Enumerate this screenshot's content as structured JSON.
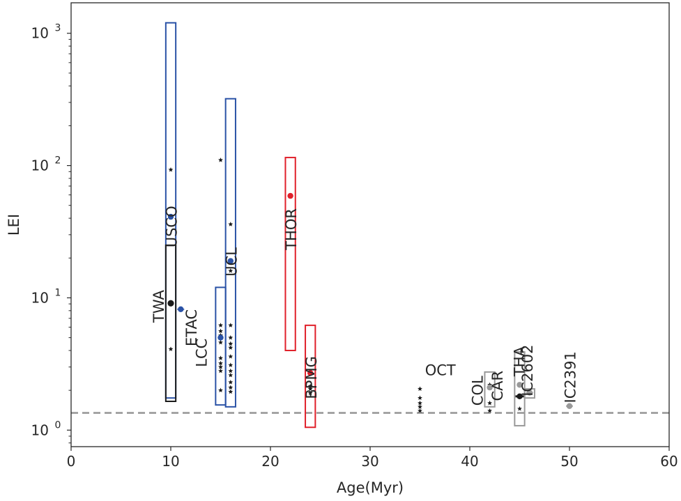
{
  "chart_data": {
    "type": "scatter",
    "title": "",
    "xlabel": "Age(Myr)",
    "ylabel": "LEI",
    "xlim": [
      0,
      60
    ],
    "ylim": [
      0.75,
      1700
    ],
    "yscale": "log",
    "grid": false,
    "x_ticks": [
      0,
      10,
      20,
      30,
      40,
      50,
      60
    ],
    "x_tick_labels": [
      "0",
      "10",
      "20",
      "30",
      "40",
      "50",
      "60"
    ],
    "y_ticks": [
      1,
      10,
      100,
      1000
    ],
    "y_tick_labels": [
      {
        "base": "10",
        "exp": "0"
      },
      {
        "base": "10",
        "exp": "1"
      },
      {
        "base": "10",
        "exp": "2"
      },
      {
        "base": "10",
        "exp": "3"
      }
    ],
    "reference_line": {
      "y": 1.35,
      "style": "dashed",
      "color": "#999999"
    },
    "colors": {
      "blue": "#2a52a6",
      "red": "#e0202a",
      "gray": "#999999",
      "black": "#1a1a1a"
    },
    "groups": [
      {
        "label": "USCO",
        "age": 10,
        "box_x": [
          9.5,
          10.5
        ],
        "box_y": [
          1.75,
          1200
        ],
        "color": "#2a52a6",
        "mean": 41,
        "members": [
          93,
          41,
          4.1
        ],
        "label_x": 10.6,
        "label_y": 24,
        "label_rotate": -90,
        "label_anchor": "start"
      },
      {
        "label": "TWA",
        "age": 10,
        "box_x": [
          9.5,
          10.5
        ],
        "box_y": [
          1.65,
          25
        ],
        "color": "#1a1a1a",
        "mean": 9.1,
        "members": [],
        "label_x": 9.3,
        "label_y": 6.5,
        "label_rotate": -90,
        "label_anchor": "start"
      },
      {
        "label": "ETAC",
        "age": 11,
        "box_x": null,
        "box_y": null,
        "color": "#2a52a6",
        "mean": 8.2,
        "members": [],
        "label_x": 12.6,
        "label_y": 4.3,
        "label_rotate": -90,
        "label_anchor": "start"
      },
      {
        "label": "LCC",
        "age": 15,
        "box_x": [
          14.5,
          15.5
        ],
        "box_y": [
          1.55,
          12
        ],
        "color": "#2a52a6",
        "mean": 5.0,
        "members": [
          110,
          6.2,
          5.6,
          5.2,
          4.6,
          3.5,
          3.2,
          3.0,
          2.8,
          2.0
        ],
        "label_x": 13.6,
        "label_y": 3.0,
        "label_rotate": -90,
        "label_anchor": "start"
      },
      {
        "label": "UCL",
        "age": 16,
        "box_x": [
          15.5,
          16.5
        ],
        "box_y": [
          1.5,
          320
        ],
        "color": "#2a52a6",
        "mean": 19,
        "members": [
          36,
          16,
          6.2,
          5.0,
          4.5,
          4.2,
          3.6,
          3.1,
          2.8,
          2.6,
          2.3,
          2.1,
          1.95
        ],
        "label_x": 16.6,
        "label_y": 14.5,
        "label_rotate": -90,
        "label_anchor": "start"
      },
      {
        "label": "THOR",
        "age": 22,
        "box_x": [
          21.5,
          22.5
        ],
        "box_y": [
          4.0,
          115
        ],
        "color": "#e0202a",
        "mean": 59,
        "members": [],
        "label_x": 22.6,
        "label_y": 23,
        "label_rotate": -90,
        "label_anchor": "start"
      },
      {
        "label": "BPMG",
        "age": 24,
        "box_x": [
          23.5,
          24.5
        ],
        "box_y": [
          1.05,
          6.2
        ],
        "color": "#e0202a",
        "mean": 2.7,
        "members": [
          2.15,
          2.05,
          1.9
        ],
        "label_x": 24.6,
        "label_y": 1.72,
        "label_rotate": -90,
        "label_anchor": "start"
      },
      {
        "label": "OCT",
        "age": 35,
        "box_x": null,
        "box_y": null,
        "color": "#1a1a1a",
        "mean": null,
        "members": [
          2.05,
          1.75,
          1.6,
          1.5,
          1.4
        ],
        "label_x": 35.5,
        "label_y": 2.6,
        "label_rotate": 0,
        "label_anchor": "start"
      },
      {
        "label": "COL",
        "age": 42,
        "box_x": [
          41.5,
          42.5
        ],
        "box_y": [
          1.5,
          2.75
        ],
        "color": "#999999",
        "mean": 2.1,
        "members": [
          2.2,
          1.6,
          1.4
        ],
        "label_x": 41.3,
        "label_y": 1.53,
        "label_rotate": -90,
        "label_anchor": "start"
      },
      {
        "label": "CAR",
        "age": 45,
        "box_x": null,
        "box_y": null,
        "color": "#1a1a1a",
        "mean": 1.8,
        "members": [
          1.45
        ],
        "label_x": 43.3,
        "label_y": 1.66,
        "label_rotate": -90,
        "label_anchor": "start"
      },
      {
        "label": "THA",
        "age": 45,
        "box_x": [
          44.5,
          45.5
        ],
        "box_y": [
          1.08,
          3.9
        ],
        "color": "#999999",
        "mean": 2.2,
        "members": [],
        "label_x": 45.5,
        "label_y": 2.55,
        "label_rotate": -90,
        "label_anchor": "start"
      },
      {
        "label": "IC2602",
        "age": 46,
        "box_x": [
          45.5,
          46.5
        ],
        "box_y": [
          1.75,
          2.05
        ],
        "color": "#999999",
        "mean": 1.92,
        "members": [],
        "label_x": 46.3,
        "label_y": 1.8,
        "label_rotate": -90,
        "label_anchor": "start"
      },
      {
        "label": "IC2391",
        "age": 50,
        "box_x": null,
        "box_y": null,
        "color": "#999999",
        "mean": 1.52,
        "members": [],
        "label_x": 50.6,
        "label_y": 1.6,
        "label_rotate": -90,
        "label_anchor": "start"
      }
    ]
  }
}
